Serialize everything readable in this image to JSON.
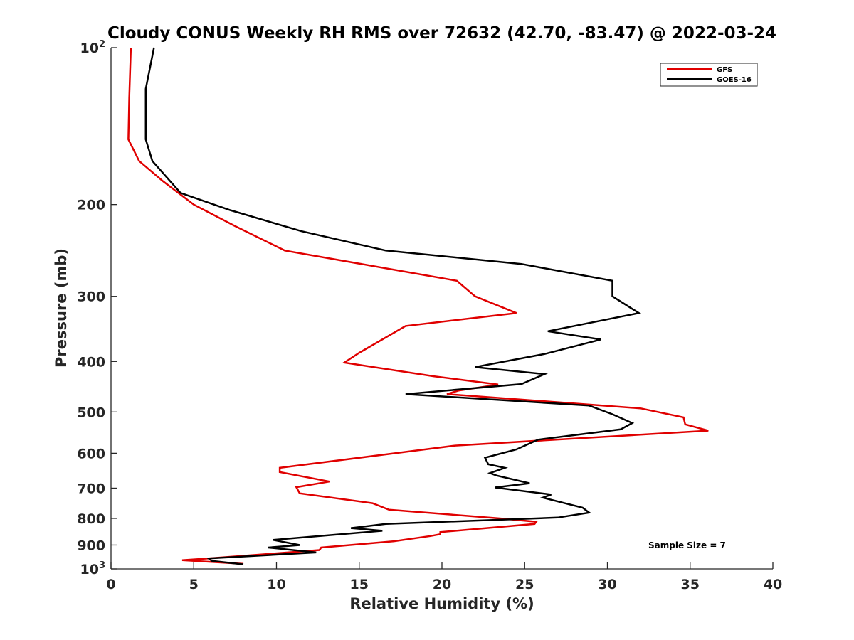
{
  "chart_data": {
    "type": "line",
    "title": "Cloudy CONUS Weekly RH RMS over 72632 (42.70, -83.47) @ 2022-03-24",
    "xlabel": "Relative Humidity (%)",
    "ylabel": "Pressure (mb)",
    "xlim": [
      0,
      40
    ],
    "ylim": [
      100,
      1000
    ],
    "yscale": "log",
    "y_reversed": true,
    "grid": false,
    "legend_position": "top-right",
    "x_ticks": [
      0,
      5,
      10,
      15,
      20,
      25,
      30,
      35,
      40
    ],
    "y_ticks": [
      {
        "value": 100,
        "label": "10",
        "sup": "2"
      },
      {
        "value": 200,
        "label": "200"
      },
      {
        "value": 300,
        "label": "300"
      },
      {
        "value": 400,
        "label": "400"
      },
      {
        "value": 500,
        "label": "500"
      },
      {
        "value": 600,
        "label": "600"
      },
      {
        "value": 700,
        "label": "700"
      },
      {
        "value": 800,
        "label": "800"
      },
      {
        "value": 900,
        "label": "900"
      },
      {
        "value": 1000,
        "label": "10",
        "sup": "3"
      }
    ],
    "series": [
      {
        "name": "GFS",
        "color": "#e00000",
        "points": [
          [
            1.2,
            100
          ],
          [
            1.1,
            125
          ],
          [
            1.05,
            150
          ],
          [
            1.7,
            165
          ],
          [
            3.1,
            180
          ],
          [
            5.0,
            200
          ],
          [
            7.5,
            220
          ],
          [
            10.5,
            245
          ],
          [
            20.9,
            280
          ],
          [
            22.0,
            300
          ],
          [
            24.5,
            323
          ],
          [
            17.8,
            342
          ],
          [
            15.0,
            385
          ],
          [
            14.1,
            402
          ],
          [
            19.5,
            427
          ],
          [
            23.4,
            443
          ],
          [
            21.0,
            455
          ],
          [
            20.3,
            462
          ],
          [
            32.0,
            492
          ],
          [
            34.6,
            512
          ],
          [
            34.7,
            528
          ],
          [
            36.1,
            543
          ],
          [
            20.8,
            580
          ],
          [
            10.2,
            640
          ],
          [
            10.2,
            652
          ],
          [
            13.2,
            680
          ],
          [
            11.2,
            697
          ],
          [
            11.4,
            716
          ],
          [
            15.8,
            748
          ],
          [
            16.8,
            770
          ],
          [
            23.5,
            800
          ],
          [
            25.7,
            812
          ],
          [
            25.6,
            820
          ],
          [
            19.9,
            850
          ],
          [
            19.9,
            858
          ],
          [
            19.3,
            865
          ],
          [
            17.1,
            885
          ],
          [
            12.7,
            910
          ],
          [
            12.6,
            920
          ],
          [
            5.9,
            955
          ],
          [
            4.3,
            962
          ],
          [
            8.0,
            978
          ]
        ]
      },
      {
        "name": "GOES-16",
        "color": "#000000",
        "points": [
          [
            2.6,
            100
          ],
          [
            2.1,
            120
          ],
          [
            2.1,
            150
          ],
          [
            2.5,
            165
          ],
          [
            4.2,
            190
          ],
          [
            7.2,
            205
          ],
          [
            11.5,
            225
          ],
          [
            16.6,
            245
          ],
          [
            24.8,
            260
          ],
          [
            30.3,
            280
          ],
          [
            30.3,
            300
          ],
          [
            31.9,
            323
          ],
          [
            26.4,
            350
          ],
          [
            29.6,
            363
          ],
          [
            26.2,
            387
          ],
          [
            22.0,
            410
          ],
          [
            26.2,
            423
          ],
          [
            24.8,
            442
          ],
          [
            17.8,
            462
          ],
          [
            28.9,
            486
          ],
          [
            30.3,
            505
          ],
          [
            31.5,
            525
          ],
          [
            30.8,
            540
          ],
          [
            25.8,
            565
          ],
          [
            24.5,
            590
          ],
          [
            22.6,
            612
          ],
          [
            22.8,
            630
          ],
          [
            23.8,
            640
          ],
          [
            22.9,
            655
          ],
          [
            23.3,
            662
          ],
          [
            25.3,
            685
          ],
          [
            23.2,
            698
          ],
          [
            26.6,
            720
          ],
          [
            26.1,
            730
          ],
          [
            28.5,
            763
          ],
          [
            28.9,
            780
          ],
          [
            27.0,
            797
          ],
          [
            16.6,
            820
          ],
          [
            14.5,
            835
          ],
          [
            16.4,
            845
          ],
          [
            9.8,
            880
          ],
          [
            11.4,
            900
          ],
          [
            9.5,
            910
          ],
          [
            12.4,
            930
          ],
          [
            5.9,
            955
          ],
          [
            6.1,
            965
          ],
          [
            8.0,
            980
          ]
        ]
      }
    ],
    "annotations": [
      "Sample Size = 7"
    ]
  }
}
